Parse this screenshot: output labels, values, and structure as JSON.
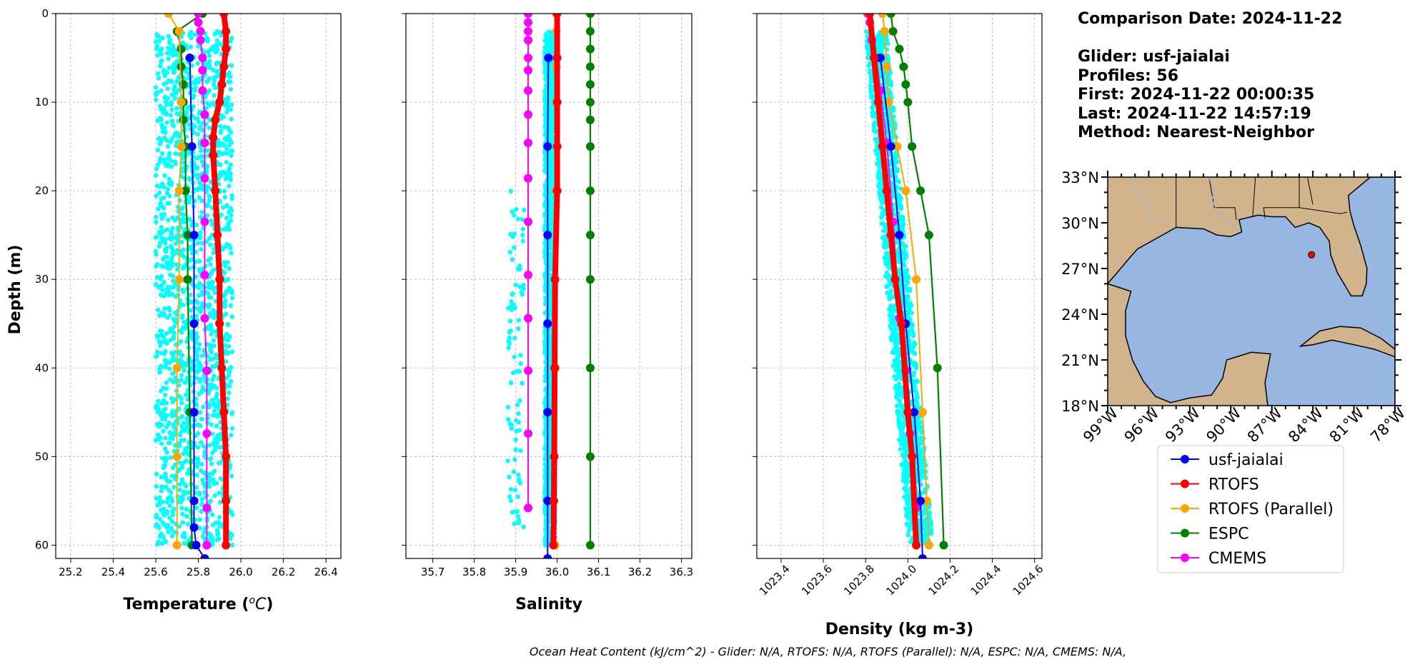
{
  "colors": {
    "glider_points": "#00FFFF",
    "usf_jaialai": "#0000FF",
    "rtofs": "#FF0000",
    "rtofs_parallel": "#FFA500",
    "espc": "#008000",
    "cmems": "#FF00FF",
    "ocean": "#97B6E1",
    "land": "#D2B48C",
    "grid": "#B0B0B0"
  },
  "info": {
    "comparison_date": "Comparison Date: 2024-11-22",
    "glider": "Glider: usf-jaialai",
    "profiles": "Profiles: 56",
    "first": "First: 2024-11-22 00:00:35",
    "last": "Last: 2024-11-22 14:57:19",
    "method": "Method: Nearest-Neighbor"
  },
  "footer": "Ocean Heat Content (kJ/cm^2) - Glider: N/A,  RTOFS: N/A,  RTOFS (Parallel): N/A,  ESPC: N/A,  CMEMS: N/A,",
  "legend": [
    {
      "label": "usf-jaialai",
      "color": "#0000FF"
    },
    {
      "label": "RTOFS",
      "color": "#FF0000"
    },
    {
      "label": "RTOFS (Parallel)",
      "color": "#FFA500"
    },
    {
      "label": "ESPC",
      "color": "#008000"
    },
    {
      "label": "CMEMS",
      "color": "#FF00FF"
    }
  ],
  "map": {
    "lat_ticks": [
      "33°N",
      "30°N",
      "27°N",
      "24°N",
      "21°N",
      "18°N"
    ],
    "lon_ticks": [
      "99°W",
      "96°W",
      "93°W",
      "90°W",
      "87°W",
      "84°W",
      "81°W",
      "78°W"
    ],
    "extent": {
      "lon_min": -99,
      "lon_max": -78,
      "lat_min": 18,
      "lat_max": 33
    },
    "glider_location": {
      "lon": -84.1,
      "lat": 27.9
    }
  },
  "chart_data": [
    {
      "type": "line",
      "title": "",
      "xlabel": "Temperature (°C)",
      "ylabel": "Depth (m)",
      "xlim": [
        25.13,
        26.47
      ],
      "ylim": [
        61.5,
        0
      ],
      "y_inverted": true,
      "grid": true,
      "xticks": [
        25.2,
        25.4,
        25.6,
        25.8,
        26.0,
        26.2,
        26.4
      ],
      "yticks": [
        0,
        10,
        20,
        30,
        40,
        50,
        60
      ],
      "glider_scatter": {
        "x_range": [
          25.6,
          25.96
        ],
        "depth_range": [
          2,
          60
        ],
        "points_per_profile": 56
      },
      "series": [
        {
          "name": "RTOFS",
          "x": [
            25.92,
            25.93,
            25.93,
            25.92,
            25.91,
            25.9,
            25.88,
            25.87,
            25.87,
            25.88,
            25.89,
            25.9,
            25.9,
            25.91,
            25.92,
            25.93,
            25.93,
            25.93
          ],
          "depth": [
            0,
            2,
            4,
            6,
            8,
            10,
            12,
            14,
            16,
            20,
            25,
            30,
            35,
            40,
            45,
            50,
            55,
            60
          ]
        },
        {
          "name": "usf-jaialai",
          "x": [
            25.76,
            25.77,
            25.78,
            25.78,
            25.78,
            25.78,
            25.78,
            25.79,
            25.83
          ],
          "depth": [
            5,
            15,
            25,
            35,
            45,
            55,
            58,
            60,
            61.5
          ]
        },
        {
          "name": "RTOFS (Parallel)",
          "x": [
            25.66,
            25.71,
            25.72,
            25.72,
            25.71,
            25.71,
            25.7,
            25.7,
            25.7
          ],
          "depth": [
            0,
            2,
            10,
            15,
            20,
            30,
            40,
            50,
            60
          ]
        },
        {
          "name": "ESPC",
          "x": [
            25.82,
            25.7,
            25.72,
            25.72,
            25.73,
            25.73,
            25.73,
            25.74,
            25.74,
            25.75,
            25.75,
            25.76,
            25.77
          ],
          "depth": [
            0,
            2,
            4,
            6,
            8,
            10,
            12,
            15,
            20,
            25,
            30,
            45,
            60
          ]
        },
        {
          "name": "CMEMS",
          "x": [
            25.8,
            25.8,
            25.81,
            25.81,
            25.82,
            25.82,
            25.82,
            25.83,
            25.83,
            25.83,
            25.83,
            25.83,
            25.83,
            25.84,
            25.84,
            25.84,
            25.84,
            25.84
          ],
          "depth": [
            0,
            1,
            2,
            3,
            5,
            6.4,
            8.7,
            11.4,
            14.6,
            18.6,
            23.5,
            29.5,
            34.4,
            40.3,
            47.4,
            55.8,
            60,
            60
          ]
        }
      ]
    },
    {
      "type": "line",
      "title": "",
      "xlabel": "Salinity",
      "ylabel": "",
      "xlim": [
        35.635,
        36.325
      ],
      "ylim": [
        61.5,
        0
      ],
      "y_inverted": true,
      "grid": true,
      "xticks": [
        35.7,
        35.8,
        35.9,
        36.0,
        36.1,
        36.2,
        36.3
      ],
      "yticks": [
        0,
        10,
        20,
        30,
        40,
        50,
        60
      ],
      "glider_scatter": {
        "x_range": [
          35.97,
          35.995
        ],
        "depth_range": [
          2,
          60
        ],
        "outlier_x_range": [
          35.88,
          35.92
        ],
        "outlier_depth_range": [
          20,
          58
        ]
      },
      "series": [
        {
          "name": "RTOFS",
          "x": [
            36.0,
            36.0,
            36.0,
            36.0,
            36.0,
            35.995,
            35.994,
            35.993,
            35.992,
            35.991
          ],
          "depth": [
            0,
            5,
            10,
            15,
            20,
            30,
            40,
            50,
            55,
            60
          ]
        },
        {
          "name": "usf-jaialai",
          "x": [
            35.979,
            35.977,
            35.977,
            35.977,
            35.977,
            35.977,
            35.977
          ],
          "depth": [
            5,
            15,
            25,
            35,
            45,
            55,
            61.5
          ]
        },
        {
          "name": "RTOFS (Parallel)",
          "x": [
            35.998,
            35.998,
            35.998,
            35.998,
            35.997,
            35.996,
            35.995
          ],
          "depth": [
            0,
            2,
            6,
            10,
            20,
            40,
            60
          ]
        },
        {
          "name": "ESPC",
          "x": [
            36.08,
            36.08,
            36.08,
            36.08,
            36.08,
            36.08,
            36.08,
            36.08,
            36.08,
            36.08,
            36.08,
            36.08,
            36.08,
            36.08
          ],
          "depth": [
            0,
            2,
            4,
            6,
            8,
            10,
            12,
            15,
            20,
            25,
            30,
            40,
            50,
            60
          ]
        },
        {
          "name": "CMEMS",
          "x": [
            35.93,
            35.93,
            35.93,
            35.93,
            35.93,
            35.93,
            35.93,
            35.93,
            35.93,
            35.93,
            35.93,
            35.93,
            35.93,
            35.93,
            35.93,
            35.93
          ],
          "depth": [
            0,
            1,
            2,
            3,
            5,
            6.4,
            8.7,
            11.4,
            14.6,
            18.6,
            23.5,
            29.5,
            34.4,
            40.3,
            47.4,
            55.8
          ]
        }
      ]
    },
    {
      "type": "line",
      "title": "",
      "xlabel": "Density (kg m-3)",
      "ylabel": "",
      "xlim": [
        1023.285,
        1024.635
      ],
      "ylim": [
        61.5,
        0
      ],
      "y_inverted": true,
      "grid": true,
      "xticks": [
        1023.4,
        1023.6,
        1023.8,
        1024.0,
        1024.2,
        1024.4,
        1024.6
      ],
      "yticks": [
        0,
        10,
        20,
        30,
        40,
        50,
        60
      ],
      "glider_scatter": {
        "x_start": [
          1023.8,
          1023.9
        ],
        "x_end": [
          1024.0,
          1024.12
        ],
        "depth_range": [
          2,
          60
        ]
      },
      "series": [
        {
          "name": "RTOFS",
          "x": [
            1023.82,
            1023.84,
            1023.86,
            1023.88,
            1023.9,
            1023.92,
            1023.94,
            1023.97,
            1024.0,
            1024.02,
            1024.04
          ],
          "depth": [
            0,
            5,
            10,
            15,
            20,
            25,
            30,
            35,
            45,
            50,
            60
          ]
        },
        {
          "name": "usf-jaialai",
          "x": [
            1023.87,
            1023.92,
            1023.96,
            1023.99,
            1024.03,
            1024.06,
            1024.07
          ],
          "depth": [
            5,
            15,
            25,
            35,
            45,
            55,
            61.5
          ]
        },
        {
          "name": "RTOFS (Parallel)",
          "x": [
            1023.88,
            1023.89,
            1023.9,
            1023.91,
            1023.95,
            1023.99,
            1024.04,
            1024.07,
            1024.09,
            1024.1
          ],
          "depth": [
            0,
            2,
            6,
            10,
            15,
            20,
            30,
            45,
            55,
            60
          ]
        },
        {
          "name": "ESPC",
          "x": [
            1023.92,
            1023.93,
            1023.96,
            1023.98,
            1023.99,
            1024.0,
            1024.02,
            1024.06,
            1024.1,
            1024.14,
            1024.17
          ],
          "depth": [
            0,
            2,
            4,
            6,
            8,
            10,
            15,
            20,
            25,
            40,
            60
          ]
        },
        {
          "name": "CMEMS",
          "x": [
            1023.81,
            1023.82,
            1023.83,
            1023.85,
            1023.87,
            1023.9,
            1023.93,
            1023.96,
            1023.99,
            1024.01,
            1024.04
          ],
          "depth": [
            0,
            1,
            3,
            5,
            8.7,
            14.6,
            23.5,
            34.4,
            40.3,
            47.4,
            55.8
          ]
        }
      ]
    }
  ]
}
